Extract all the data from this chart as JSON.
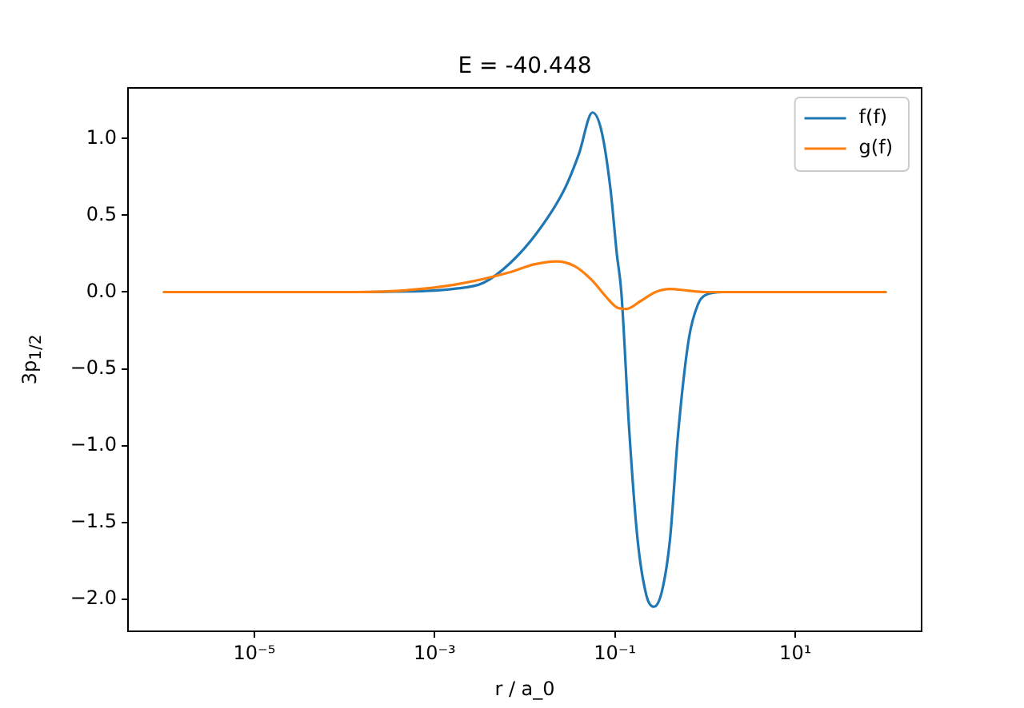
{
  "chart_data": {
    "type": "line",
    "title": "E = -40.448",
    "xlabel": "r / a_0",
    "ylabel": "3p$_{1/2}$",
    "log": "x",
    "grid": false,
    "legend": "top right",
    "marker": "none",
    "line_style": "solid",
    "xlim": [
      3.98e-07,
      251
    ],
    "xticks": [
      {
        "value": 1e-05,
        "label": "10⁻⁵"
      },
      {
        "value": 0.001,
        "label": "10⁻³"
      },
      {
        "value": 0.1,
        "label": "10⁻¹"
      },
      {
        "value": 10,
        "label": "10¹"
      }
    ],
    "ylim": [
      -2.21,
      1.33
    ],
    "yticks": [
      {
        "value": -2,
        "label": "−2.0"
      },
      {
        "value": -1.5,
        "label": "−1.5"
      },
      {
        "value": -1,
        "label": "−1.0"
      },
      {
        "value": -0.5,
        "label": "−0.5"
      },
      {
        "value": 0,
        "label": "0.0"
      },
      {
        "value": 0.5,
        "label": "0.5"
      },
      {
        "value": 1,
        "label": "1.0"
      }
    ],
    "series": [
      {
        "name": "f(f)",
        "color": "#1f77b4",
        "x": [
          1e-06,
          0.0001,
          0.001,
          0.001585,
          0.003467,
          0.006918,
          0.0138,
          0.02754,
          0.03981,
          0.05623,
          0.07079,
          0.08913,
          0.1047,
          0.1175,
          0.1445,
          0.1778,
          0.2239,
          0.2692,
          0.3311,
          0.4074,
          0.5012,
          0.6607,
          0.8318,
          1,
          1.585,
          100
        ],
        "values": [
          0,
          0,
          0.01,
          0.02,
          0.06,
          0.19,
          0.39,
          0.67,
          0.9,
          1.17,
          1.05,
          0.67,
          0.25,
          0,
          -0.92,
          -1.61,
          -1.98,
          -2.05,
          -1.95,
          -1.61,
          -0.92,
          -0.3,
          -0.08,
          -0.02,
          0,
          0
        ]
      },
      {
        "name": "g(f)",
        "color": "#ff7f0e",
        "x": [
          1e-06,
          0.0001,
          0.0004365,
          0.001738,
          0.006918,
          0.01259,
          0.02239,
          0.03548,
          0.05495,
          0.07943,
          0.1047,
          0.1349,
          0.1905,
          0.2818,
          0.4074,
          0.631,
          1,
          100
        ],
        "values": [
          0,
          0,
          0.01,
          0.05,
          0.13,
          0.18,
          0.2,
          0.17,
          0.08,
          -0.03,
          -0.1,
          -0.11,
          -0.06,
          0,
          0.02,
          0.01,
          0,
          0
        ]
      }
    ]
  }
}
